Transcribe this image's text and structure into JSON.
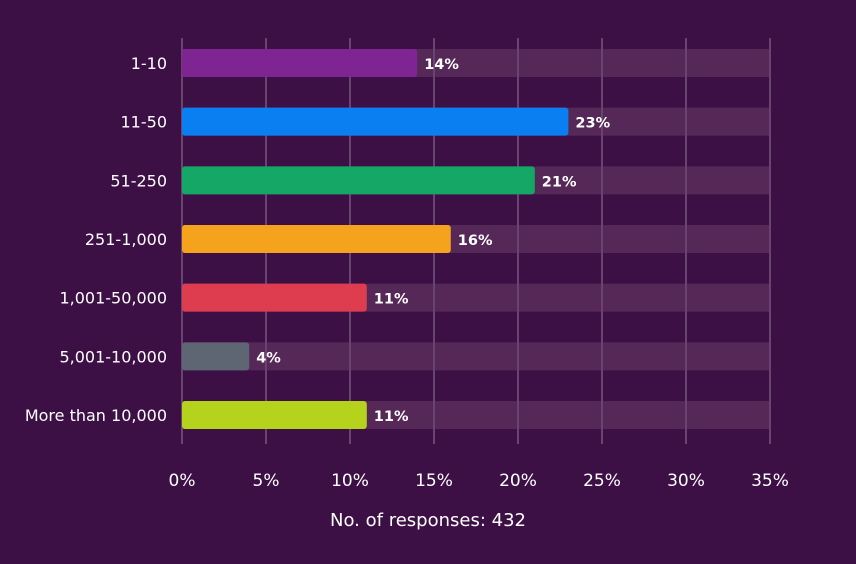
{
  "chart_data": {
    "type": "bar",
    "orientation": "horizontal",
    "categories": [
      "1-10",
      "11-50",
      "51-250",
      "251-1,000",
      "1,001-50,000",
      "5,001-10,000",
      "More than 10,000"
    ],
    "values": [
      14,
      23,
      21,
      16,
      11,
      4,
      11
    ],
    "value_labels": [
      "14%",
      "23%",
      "21%",
      "16%",
      "11%",
      "4%",
      "11%"
    ],
    "colors": [
      "#7f2593",
      "#0a7ff1",
      "#14a766",
      "#f5a31c",
      "#de3c4f",
      "#5e6673",
      "#b5d21d"
    ],
    "xlim": [
      0,
      35
    ],
    "xticks": [
      0,
      5,
      10,
      15,
      20,
      25,
      30,
      35
    ],
    "xtick_labels": [
      "0%",
      "5%",
      "10%",
      "15%",
      "20%",
      "25%",
      "30%",
      "35%"
    ],
    "grid": true,
    "title": "",
    "xlabel": "",
    "ylabel": "",
    "track_color": "#552857",
    "grid_color": "#6a4470"
  },
  "footer": {
    "responses_label": "No. of responses: 432"
  }
}
